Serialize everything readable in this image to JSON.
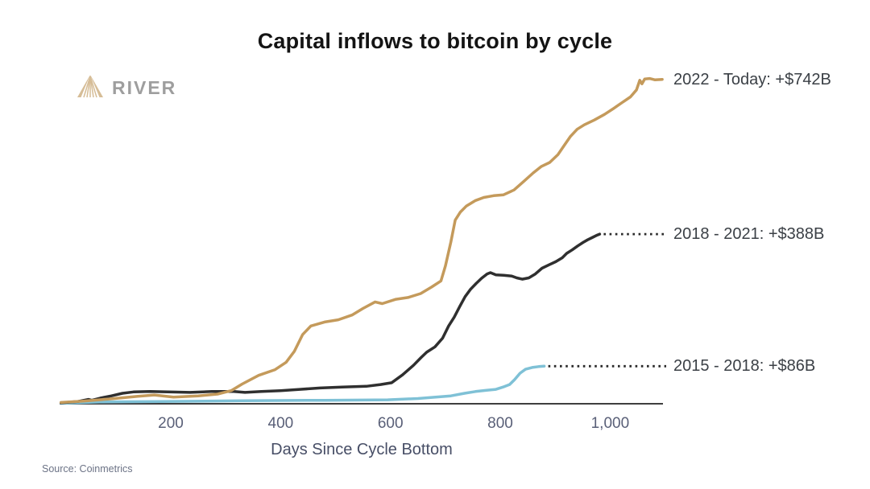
{
  "title": "Capital inflows to bitcoin by cycle",
  "logo": {
    "brand": "RIVER",
    "icon": "river-mountain-fan-icon",
    "icon_color": "#D6BD97",
    "text_color": "#9E9E9E"
  },
  "source_note": "Source: Coinmetrics",
  "colors": {
    "background": "#FFFFFF",
    "axis": "#3F3F3F",
    "dotted_connector": "#2B2B2B",
    "gold_series": "#C49A5B",
    "dark_series": "#2F2F2F",
    "blue_series": "#7FC1D6",
    "tick_label": "#5A6078",
    "axis_title": "#474E66"
  },
  "chart_data": {
    "type": "line",
    "title": "Capital inflows to bitcoin by cycle",
    "xlabel": "Days Since Cycle Bottom",
    "ylabel": "",
    "units": {
      "x": "days",
      "y": "billions USD"
    },
    "x_range": [
      0,
      1100
    ],
    "y_range": [
      0,
      760
    ],
    "grid": false,
    "legend_position": "right of line ends",
    "x_ticks": [
      {
        "label": "200",
        "value": 200
      },
      {
        "label": "400",
        "value": 400
      },
      {
        "label": "600",
        "value": 600
      },
      {
        "label": "800",
        "value": 800
      },
      {
        "label": "1,000",
        "value": 1000
      }
    ],
    "series": [
      {
        "id": "cycle-2022-today",
        "label": "2022 - Today: +$742B",
        "color": "#C49A5B",
        "final_value_billions": 742,
        "dotted_connector": false,
        "points": [
          [
            0,
            3
          ],
          [
            40,
            6
          ],
          [
            90,
            11
          ],
          [
            140,
            17
          ],
          [
            170,
            20
          ],
          [
            205,
            15
          ],
          [
            250,
            18
          ],
          [
            285,
            22
          ],
          [
            310,
            30
          ],
          [
            330,
            45
          ],
          [
            360,
            65
          ],
          [
            390,
            78
          ],
          [
            410,
            95
          ],
          [
            425,
            120
          ],
          [
            440,
            158
          ],
          [
            455,
            178
          ],
          [
            480,
            187
          ],
          [
            505,
            192
          ],
          [
            530,
            203
          ],
          [
            550,
            218
          ],
          [
            572,
            233
          ],
          [
            585,
            229
          ],
          [
            610,
            239
          ],
          [
            632,
            243
          ],
          [
            655,
            252
          ],
          [
            675,
            267
          ],
          [
            692,
            281
          ],
          [
            700,
            315
          ],
          [
            710,
            370
          ],
          [
            718,
            420
          ],
          [
            727,
            438
          ],
          [
            738,
            452
          ],
          [
            755,
            465
          ],
          [
            770,
            472
          ],
          [
            788,
            476
          ],
          [
            806,
            478
          ],
          [
            825,
            489
          ],
          [
            843,
            509
          ],
          [
            860,
            528
          ],
          [
            875,
            543
          ],
          [
            890,
            552
          ],
          [
            905,
            570
          ],
          [
            916,
            590
          ],
          [
            928,
            612
          ],
          [
            940,
            628
          ],
          [
            953,
            638
          ],
          [
            971,
            649
          ],
          [
            990,
            662
          ],
          [
            1007,
            676
          ],
          [
            1022,
            689
          ],
          [
            1037,
            702
          ],
          [
            1048,
            718
          ],
          [
            1054,
            740
          ],
          [
            1058,
            732
          ],
          [
            1063,
            743
          ],
          [
            1072,
            744
          ],
          [
            1082,
            741
          ],
          [
            1095,
            742
          ]
        ]
      },
      {
        "id": "cycle-2018-2021",
        "label": "2018 - 2021: +$388B",
        "color": "#2F2F2F",
        "final_value_billions": 388,
        "dotted_connector": true,
        "points": [
          [
            0,
            2
          ],
          [
            30,
            5
          ],
          [
            50,
            10
          ],
          [
            56,
            8
          ],
          [
            72,
            13
          ],
          [
            92,
            18
          ],
          [
            112,
            24
          ],
          [
            132,
            27
          ],
          [
            162,
            28
          ],
          [
            195,
            27
          ],
          [
            235,
            26
          ],
          [
            275,
            28
          ],
          [
            315,
            28
          ],
          [
            335,
            26
          ],
          [
            365,
            28
          ],
          [
            400,
            30
          ],
          [
            435,
            33
          ],
          [
            472,
            36
          ],
          [
            512,
            38
          ],
          [
            556,
            40
          ],
          [
            582,
            44
          ],
          [
            602,
            48
          ],
          [
            622,
            66
          ],
          [
            642,
            88
          ],
          [
            656,
            106
          ],
          [
            666,
            118
          ],
          [
            681,
            130
          ],
          [
            695,
            150
          ],
          [
            706,
            178
          ],
          [
            716,
            198
          ],
          [
            726,
            222
          ],
          [
            736,
            245
          ],
          [
            746,
            262
          ],
          [
            756,
            275
          ],
          [
            766,
            287
          ],
          [
            776,
            297
          ],
          [
            782,
            300
          ],
          [
            792,
            295
          ],
          [
            806,
            294
          ],
          [
            821,
            292
          ],
          [
            830,
            288
          ],
          [
            840,
            285
          ],
          [
            852,
            288
          ],
          [
            864,
            297
          ],
          [
            876,
            310
          ],
          [
            889,
            318
          ],
          [
            901,
            325
          ],
          [
            913,
            334
          ],
          [
            921,
            344
          ],
          [
            931,
            352
          ],
          [
            941,
            361
          ],
          [
            951,
            369
          ],
          [
            959,
            375
          ],
          [
            967,
            380
          ],
          [
            975,
            385
          ],
          [
            981,
            388
          ]
        ]
      },
      {
        "id": "cycle-2015-2018",
        "label": "2015 - 2018: +$86B",
        "color": "#7FC1D6",
        "final_value_billions": 86,
        "dotted_connector": true,
        "points": [
          [
            0,
            1
          ],
          [
            70,
            4
          ],
          [
            180,
            5
          ],
          [
            330,
            7
          ],
          [
            480,
            8
          ],
          [
            595,
            9
          ],
          [
            650,
            12
          ],
          [
            710,
            18
          ],
          [
            735,
            24
          ],
          [
            755,
            28
          ],
          [
            775,
            31
          ],
          [
            792,
            33
          ],
          [
            807,
            39
          ],
          [
            817,
            44
          ],
          [
            826,
            55
          ],
          [
            836,
            70
          ],
          [
            846,
            79
          ],
          [
            858,
            83
          ],
          [
            870,
            85
          ],
          [
            880,
            86
          ]
        ]
      }
    ]
  }
}
